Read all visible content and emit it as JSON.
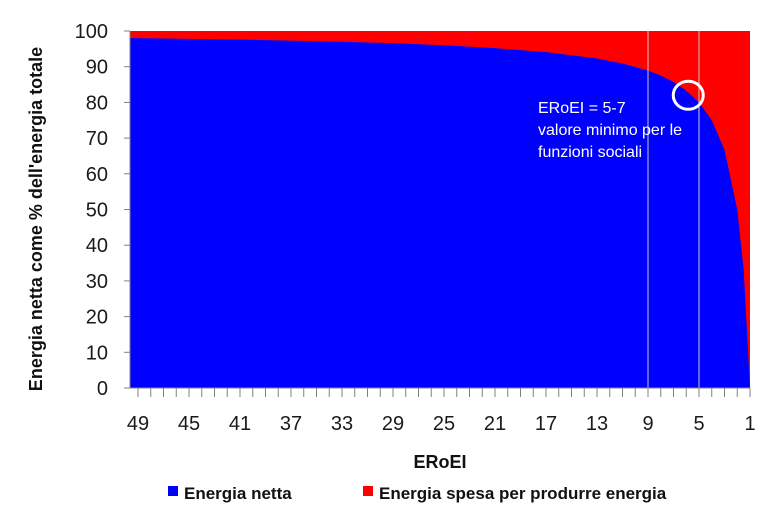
{
  "chart_data": {
    "type": "area",
    "xlabel": "ERoEI",
    "ylabel": "Energia netta come % dell'energia totale",
    "ylim": [
      0,
      100
    ],
    "yticks": [
      "0",
      "10",
      "20",
      "30",
      "40",
      "50",
      "60",
      "70",
      "80",
      "90",
      "100"
    ],
    "xaxis_reversed": true,
    "x_tick_labels": [
      "49",
      "45",
      "41",
      "37",
      "33",
      "29",
      "25",
      "21",
      "17",
      "13",
      "9",
      "5",
      "1"
    ],
    "x": [
      50,
      49,
      45,
      41,
      37,
      33,
      29,
      25,
      21,
      17,
      13,
      11,
      9,
      8,
      7,
      6,
      5,
      4,
      3,
      2,
      1.5,
      1
    ],
    "series": [
      {
        "name": "Energia netta",
        "color": "#0000ff",
        "values": [
          98.0,
          98.0,
          97.8,
          97.6,
          97.3,
          97.0,
          96.6,
          96.0,
          95.2,
          94.1,
          92.3,
          90.9,
          88.9,
          87.5,
          85.7,
          83.3,
          80.0,
          75.0,
          66.7,
          50.0,
          33.3,
          0
        ]
      },
      {
        "name": "Energia spesa per produrre energia",
        "color": "#ff0000",
        "values": [
          2.0,
          2.0,
          2.2,
          2.4,
          2.7,
          3.0,
          3.4,
          4.0,
          4.8,
          5.9,
          7.7,
          9.1,
          11.1,
          12.5,
          14.3,
          16.7,
          20.0,
          25.0,
          33.3,
          50.0,
          66.7,
          100
        ]
      }
    ],
    "reference_lines_x": [
      9,
      5
    ],
    "annotation": {
      "lines": [
        "ERoEI = 5-7",
        "valore minimo per le",
        "funzioni sociali"
      ],
      "highlight_x": 6,
      "highlight_y": 82
    },
    "legend": {
      "placement": "bottom"
    },
    "grid": false
  }
}
